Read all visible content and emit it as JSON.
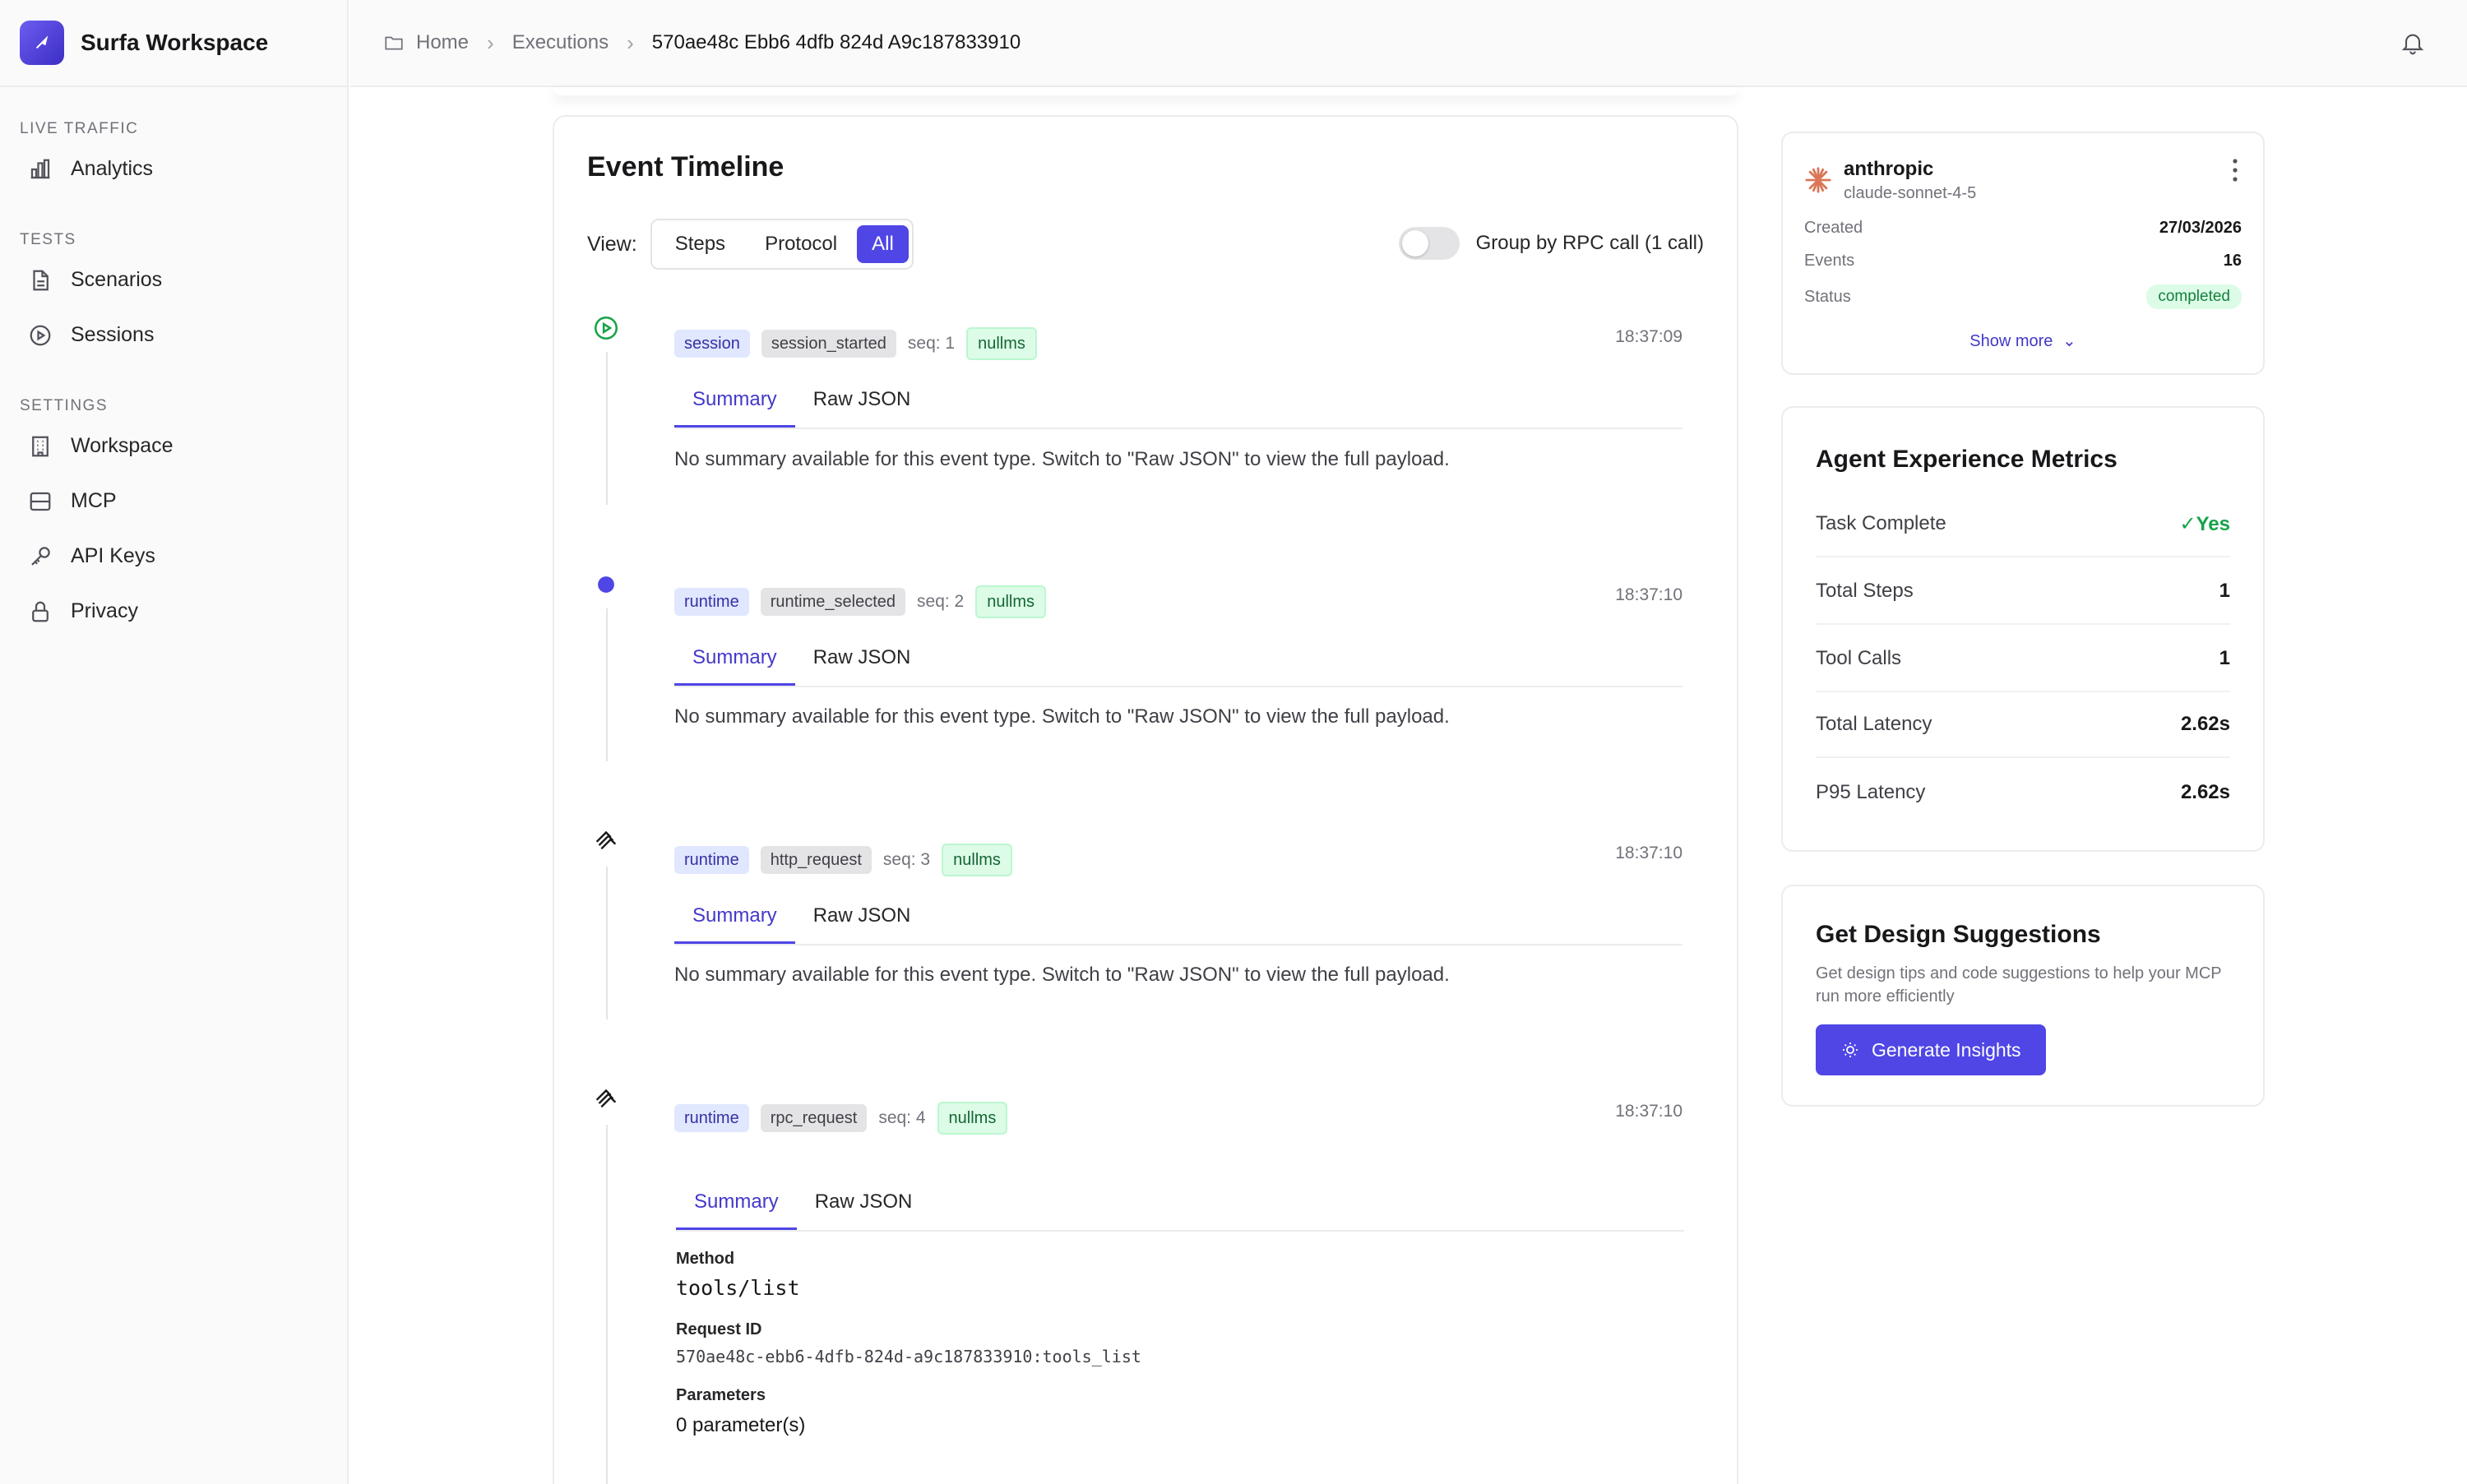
{
  "app": {
    "name": "Surfa Workspace"
  },
  "sidebar": {
    "sections": [
      {
        "heading": "LIVE TRAFFIC",
        "items": [
          {
            "label": "Analytics",
            "icon": "bar-chart-icon"
          }
        ]
      },
      {
        "heading": "TESTS",
        "items": [
          {
            "label": "Scenarios",
            "icon": "document-icon"
          },
          {
            "label": "Sessions",
            "icon": "play-circle-icon"
          }
        ]
      },
      {
        "heading": "SETTINGS",
        "items": [
          {
            "label": "Workspace",
            "icon": "building-icon"
          },
          {
            "label": "MCP",
            "icon": "server-icon"
          },
          {
            "label": "API Keys",
            "icon": "key-icon"
          },
          {
            "label": "Privacy",
            "icon": "lock-icon"
          }
        ]
      }
    ]
  },
  "breadcrumb": {
    "home": "Home",
    "executions": "Executions",
    "current": "570ae48c Ebb6 4dfb 824d A9c187833910"
  },
  "timeline": {
    "title": "Event Timeline",
    "view_label": "View:",
    "view_options": [
      "Steps",
      "Protocol",
      "All"
    ],
    "selected_view": "All",
    "group_label": "Group by RPC call (1 call)",
    "tab_summary": "Summary",
    "tab_raw": "Raw JSON",
    "events": [
      {
        "category": "session",
        "type": "session_started",
        "seq": "seq: 1",
        "latency": "nullms",
        "time": "18:37:09",
        "summary": "No summary available for this event type. Switch to \"Raw JSON\" to view the full payload."
      },
      {
        "category": "runtime",
        "type": "runtime_selected",
        "seq": "seq: 2",
        "latency": "nullms",
        "time": "18:37:10",
        "summary": "No summary available for this event type. Switch to \"Raw JSON\" to view the full payload."
      },
      {
        "category": "runtime",
        "type": "http_request",
        "seq": "seq: 3",
        "latency": "nullms",
        "time": "18:37:10",
        "summary": "No summary available for this event type. Switch to \"Raw JSON\" to view the full payload."
      },
      {
        "category": "runtime",
        "type": "rpc_request",
        "seq": "seq: 4",
        "latency": "nullms",
        "time": "18:37:10",
        "method_label": "Method",
        "method": "tools/list",
        "request_id_label": "Request ID",
        "request_id": "570ae48c-ebb6-4dfb-824d-a9c187833910:tools_list",
        "params_label": "Parameters",
        "params": "0 parameter(s)"
      }
    ]
  },
  "info": {
    "provider": "anthropic",
    "model": "claude-sonnet-4-5",
    "created_label": "Created",
    "created": "27/03/2026",
    "events_label": "Events",
    "events": "16",
    "status_label": "Status",
    "status": "completed",
    "show_more": "Show more"
  },
  "metrics": {
    "title": "Agent Experience Metrics",
    "rows": [
      {
        "label": "Task Complete",
        "value": "✓Yes"
      },
      {
        "label": "Total Steps",
        "value": "1"
      },
      {
        "label": "Tool Calls",
        "value": "1"
      },
      {
        "label": "Total Latency",
        "value": "2.62s"
      },
      {
        "label": "P95 Latency",
        "value": "2.62s"
      }
    ]
  },
  "design": {
    "title": "Get Design Suggestions",
    "description": "Get design tips and code suggestions to help your MCP run more efficiently",
    "button": "Generate Insights"
  },
  "colors": {
    "accent": "#4f46e5",
    "success": "#16a34a",
    "provider": "#d97757"
  }
}
